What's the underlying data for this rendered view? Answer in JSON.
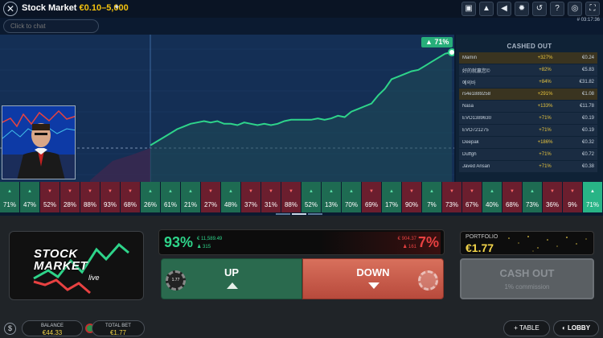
{
  "header": {
    "title": "Stock Market",
    "limits": "€0.10–5,000",
    "clock": "# 03:17:36",
    "icons": [
      "chat-bubbles-icon",
      "warning-icon",
      "volume-icon",
      "settings-icon",
      "history-icon",
      "help-icon",
      "headset-icon",
      "fullscreen-icon"
    ]
  },
  "chat": {
    "placeholder": "Click to chat"
  },
  "chart": {
    "peak_label": "71%",
    "accent_up": "#2ed48a",
    "accent_down": "#e84141"
  },
  "chart_data": {
    "type": "line",
    "x": [
      0,
      1,
      2,
      3,
      4,
      5,
      6,
      7,
      8,
      9,
      10,
      11,
      12,
      13,
      14,
      15,
      16,
      17,
      18,
      19,
      20,
      21,
      22,
      23,
      24,
      25,
      26,
      27,
      28,
      29,
      30,
      31,
      32,
      33,
      34,
      35,
      36,
      37,
      38,
      39,
      40,
      41,
      42,
      43,
      44,
      45
    ],
    "series": [
      {
        "values": [
          0,
          0.5,
          1,
          1,
          1,
          1,
          1,
          1,
          0,
          0,
          0,
          0,
          0,
          0,
          0,
          0,
          0,
          0,
          0,
          0,
          0,
          0,
          0,
          0,
          0,
          0,
          0,
          0,
          0,
          0,
          0,
          0,
          0,
          0,
          0,
          0,
          0,
          0,
          0,
          0,
          0,
          0,
          0,
          0,
          0,
          0
        ]
      },
      {
        "values": [
          2,
          5,
          8,
          11,
          14,
          16,
          18,
          19,
          20,
          19,
          20,
          18,
          18,
          17,
          19,
          18,
          17,
          18,
          17,
          18,
          20,
          21,
          21,
          21,
          21,
          22,
          21,
          22,
          24,
          23,
          27,
          29,
          31,
          33,
          39,
          44,
          51,
          53,
          55,
          57,
          58,
          61,
          64,
          67,
          70,
          71
        ]
      }
    ]
  },
  "cashed_out": {
    "title": "CASHED OUT",
    "rows": [
      {
        "name": "Mamin",
        "pct": "+327%",
        "amount": "€0.24"
      },
      {
        "name": "好的就赢您©",
        "pct": "+82%",
        "amount": "€5.83"
      },
      {
        "name": "예의바",
        "pct": "+84%",
        "amount": "€31.82"
      },
      {
        "name": "rs4e1889258",
        "pct": "+291%",
        "amount": "€1.08"
      },
      {
        "name": "Nasa",
        "pct": "+133%",
        "amount": "€11.78"
      },
      {
        "name": "EVO1389630",
        "pct": "+71%",
        "amount": "€0.19"
      },
      {
        "name": "EVO721275",
        "pct": "+71%",
        "amount": "€0.19"
      },
      {
        "name": "Deepak",
        "pct": "+186%",
        "amount": "€0.32"
      },
      {
        "name": "Duffgh",
        "pct": "+71%",
        "amount": "€0.72"
      },
      {
        "name": "Javed Ansari",
        "pct": "+71%",
        "amount": "€0.38"
      }
    ]
  },
  "history": [
    {
      "dir": "up",
      "value": "71%"
    },
    {
      "dir": "up",
      "value": "47%"
    },
    {
      "dir": "down",
      "value": "52%"
    },
    {
      "dir": "down",
      "value": "28%"
    },
    {
      "dir": "down",
      "value": "88%"
    },
    {
      "dir": "down",
      "value": "93%"
    },
    {
      "dir": "down",
      "value": "68%"
    },
    {
      "dir": "up",
      "value": "26%"
    },
    {
      "dir": "up",
      "value": "61%"
    },
    {
      "dir": "up",
      "value": "21%"
    },
    {
      "dir": "down",
      "value": "27%"
    },
    {
      "dir": "up",
      "value": "48%"
    },
    {
      "dir": "down",
      "value": "37%"
    },
    {
      "dir": "down",
      "value": "31%"
    },
    {
      "dir": "down",
      "value": "88%"
    },
    {
      "dir": "up",
      "value": "52%"
    },
    {
      "dir": "up",
      "value": "13%"
    },
    {
      "dir": "up",
      "value": "70%"
    },
    {
      "dir": "down",
      "value": "69%"
    },
    {
      "dir": "up",
      "value": "17%"
    },
    {
      "dir": "down",
      "value": "90%"
    },
    {
      "dir": "up",
      "value": "7%"
    },
    {
      "dir": "down",
      "value": "73%"
    },
    {
      "dir": "down",
      "value": "67%"
    },
    {
      "dir": "up",
      "value": "40%"
    },
    {
      "dir": "down",
      "value": "68%"
    },
    {
      "dir": "up",
      "value": "73%"
    },
    {
      "dir": "down",
      "value": "36%"
    },
    {
      "dir": "down",
      "value": "9%"
    },
    {
      "dir": "last",
      "value": "71%"
    }
  ],
  "logo": {
    "line1": "STOCK",
    "line2": "MARKET",
    "live": "live"
  },
  "bets": {
    "up_pct": "93%",
    "up_amount": "€ 11,589.49",
    "up_count": "315",
    "down_pct": "7%",
    "down_amount": "€ 904.37",
    "down_count": "161",
    "up_label": "UP",
    "down_label": "DOWN",
    "chip_value": "1.77"
  },
  "portfolio": {
    "label": "PORTFOLIO",
    "value": "€1.77"
  },
  "cashout": {
    "label": "CASH OUT",
    "sub": "1% commission"
  },
  "footer": {
    "balance_label": "BALANCE",
    "balance_value": "€44.33",
    "totalbet_label": "TOTAL BET",
    "totalbet_value": "€1.77",
    "table_label": "TABLE",
    "lobby_label": "LOBBY"
  }
}
